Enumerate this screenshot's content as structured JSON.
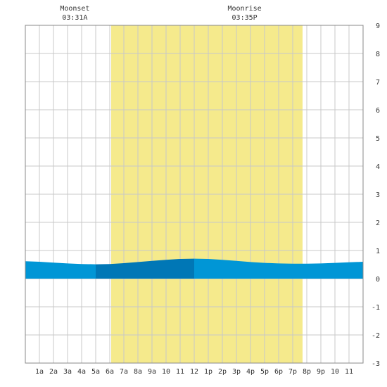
{
  "chart_data": {
    "type": "area",
    "annotations": [
      {
        "label": "Moonset",
        "time": "03:31A",
        "hour": 3.52
      },
      {
        "label": "Moonrise",
        "time": "03:35P",
        "hour": 15.58
      }
    ],
    "x_tick_labels": [
      "1a",
      "2a",
      "3a",
      "4a",
      "5a",
      "6a",
      "7a",
      "8a",
      "9a",
      "10",
      "11",
      "12",
      "1p",
      "2p",
      "3p",
      "4p",
      "5p",
      "6p",
      "7p",
      "8p",
      "9p",
      "10",
      "11"
    ],
    "y_tick_labels": [
      "9",
      "8",
      "7",
      "6",
      "5",
      "4",
      "3",
      "2",
      "1",
      "0",
      "-1",
      "-2",
      "-3"
    ],
    "xlim": [
      0,
      24
    ],
    "ylim": [
      -3,
      9
    ],
    "grid": true,
    "daylight": {
      "start_hour": 6.1,
      "end_hour": 19.7,
      "color": "#f5ea8c"
    },
    "tide_colors": {
      "falling": "#0096d6",
      "rising": "#0077b6"
    },
    "series": [
      {
        "x": [
          0,
          1,
          2,
          3,
          4,
          5,
          6,
          7,
          8,
          9,
          10,
          11,
          12,
          13,
          14,
          15,
          16,
          17,
          18,
          19,
          20,
          21,
          22,
          23,
          24
        ],
        "values": [
          0.62,
          0.6,
          0.57,
          0.54,
          0.52,
          0.51,
          0.52,
          0.55,
          0.59,
          0.63,
          0.67,
          0.7,
          0.71,
          0.7,
          0.67,
          0.63,
          0.59,
          0.56,
          0.54,
          0.53,
          0.53,
          0.54,
          0.56,
          0.58,
          0.6
        ]
      }
    ]
  }
}
